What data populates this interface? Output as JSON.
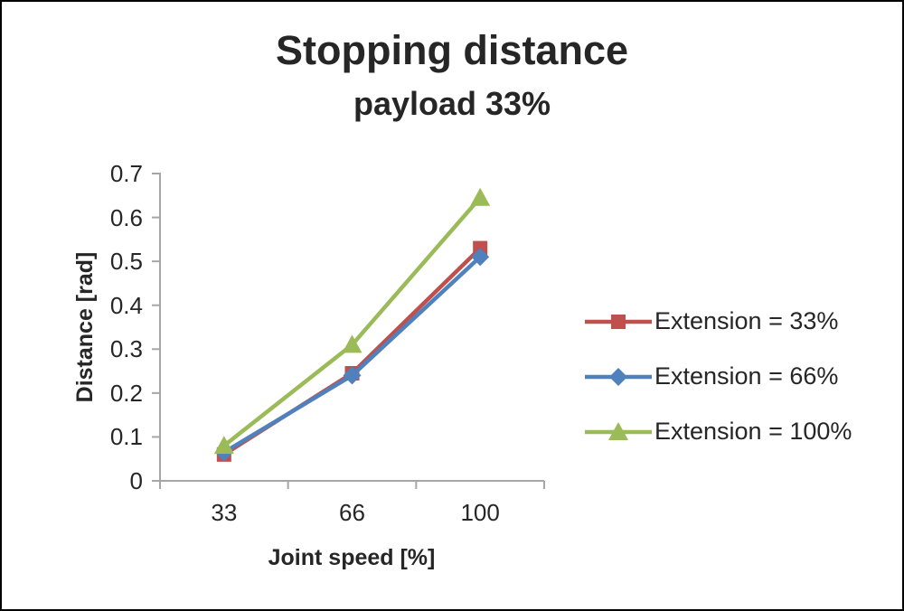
{
  "chart_data": {
    "type": "line",
    "title": "Stopping distance",
    "subtitle": "payload 33%",
    "xlabel": "Joint speed [%]",
    "ylabel": "Distance [rad]",
    "categories": [
      33,
      66,
      100
    ],
    "series": [
      {
        "name": "Extension = 33%",
        "values": [
          0.06,
          0.245,
          0.53
        ],
        "color": "#C0504D",
        "marker": "square"
      },
      {
        "name": "Extension = 66%",
        "values": [
          0.065,
          0.24,
          0.51
        ],
        "color": "#4F81BD",
        "marker": "diamond"
      },
      {
        "name": "Extension = 100%",
        "values": [
          0.08,
          0.31,
          0.645
        ],
        "color": "#9BBB59",
        "marker": "triangle"
      }
    ],
    "ylim": [
      0,
      0.7
    ],
    "ytick_step": 0.1,
    "axis_color": "#A6A6A6",
    "grid": false,
    "legend_position": "right"
  }
}
